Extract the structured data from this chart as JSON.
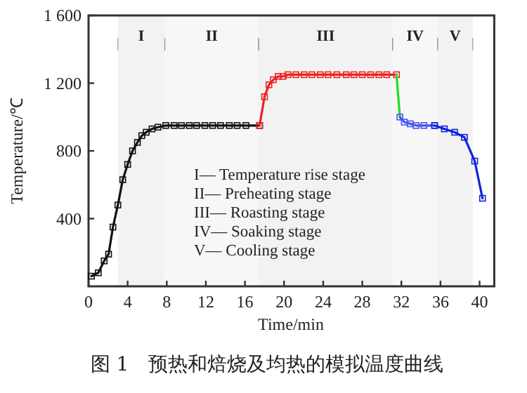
{
  "chart_data": {
    "type": "line",
    "title": "图 1　预热和焙烧及均热的模拟温度曲线",
    "xlabel": "Time/min",
    "ylabel": "Temperature/℃",
    "xlim": [
      0,
      41.5
    ],
    "ylim": [
      0,
      1600
    ],
    "xticks": [
      0,
      4,
      8,
      12,
      16,
      20,
      24,
      28,
      32,
      36,
      40
    ],
    "yticks": [
      {
        "value": 400,
        "label": "400"
      },
      {
        "value": 800,
        "label": "800"
      },
      {
        "value": 1200,
        "label": "1 200"
      },
      {
        "value": 1600,
        "label": "1 600"
      }
    ],
    "series": [
      {
        "color": "#111111",
        "marker": "square",
        "x": [
          0.3,
          1.0,
          1.6,
          2.05,
          2.5,
          3.0,
          3.5,
          4.0,
          4.5,
          5.0,
          5.45,
          5.9,
          6.5,
          7.1,
          7.9,
          8.75,
          9.5,
          10.3,
          11.05,
          11.9,
          12.7,
          13.5,
          14.4,
          15.2,
          16.1,
          17.5
        ],
        "values": [
          60,
          80,
          150,
          190,
          350,
          480,
          630,
          720,
          800,
          850,
          890,
          910,
          930,
          940,
          950,
          950,
          950,
          950,
          950,
          950,
          950,
          950,
          950,
          950,
          950,
          950
        ]
      },
      {
        "color": "#ee2222",
        "marker": "square",
        "x": [
          17.5,
          18.0,
          18.45,
          18.9,
          19.4,
          19.9,
          20.4,
          21.2,
          22.05,
          22.85,
          23.7,
          24.5,
          25.4,
          26.35,
          27.15,
          28.0,
          28.85,
          29.7,
          30.5,
          31.5
        ],
        "values": [
          950,
          1120,
          1190,
          1220,
          1240,
          1240,
          1250,
          1250,
          1250,
          1250,
          1250,
          1250,
          1250,
          1250,
          1250,
          1250,
          1250,
          1250,
          1250,
          1250
        ]
      },
      {
        "color": "#22dd22",
        "x": [
          31.5,
          31.85
        ],
        "values": [
          1250,
          1000
        ]
      },
      {
        "color": "#4455ee",
        "marker": "square",
        "x": [
          31.85,
          32.3,
          32.9,
          33.5,
          34.3,
          35.4
        ],
        "values": [
          1000,
          970,
          960,
          950,
          950,
          950
        ]
      },
      {
        "color": "#1122dd",
        "marker": "square",
        "x": [
          35.4,
          36.4,
          37.45,
          38.45,
          39.5,
          40.3
        ],
        "values": [
          950,
          930,
          910,
          880,
          740,
          520
        ]
      }
    ],
    "bands": [
      {
        "axis": "x",
        "from": 3,
        "to": 7.8,
        "label": "I",
        "color": "#f2f2f2"
      },
      {
        "axis": "x",
        "from": 7.8,
        "to": 17.4,
        "label": "II",
        "color": "#f7f7f7"
      },
      {
        "axis": "x",
        "from": 17.4,
        "to": 31.1,
        "label": "III",
        "color": "#f2f2f2"
      },
      {
        "axis": "x",
        "from": 31.1,
        "to": 35.7,
        "label": "IV",
        "color": "#f7f7f7"
      },
      {
        "axis": "x",
        "from": 35.7,
        "to": 39.3,
        "label": "V",
        "color": "#f2f2f2"
      }
    ],
    "annotations": [
      "I— Temperature rise stage",
      "II— Preheating stage",
      "III— Roasting stage",
      "IV— Soaking stage",
      "V— Cooling stage"
    ]
  }
}
